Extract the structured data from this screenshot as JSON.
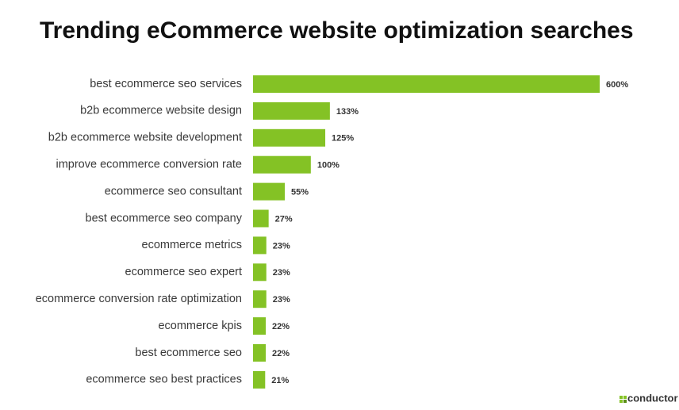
{
  "chart_data": {
    "type": "bar",
    "orientation": "horizontal",
    "title": "Trending eCommerce website optimization searches",
    "categories": [
      "best ecommerce seo services",
      "b2b ecommerce website design",
      "b2b ecommerce website development",
      "improve ecommerce conversion rate",
      "ecommerce seo consultant",
      "best ecommerce seo company",
      "ecommerce metrics",
      "ecommerce seo expert",
      "ecommerce conversion rate optimization",
      "ecommerce kpis",
      "best ecommerce seo",
      "ecommerce seo best practices"
    ],
    "values": [
      600,
      133,
      125,
      100,
      55,
      27,
      23,
      23,
      23,
      22,
      22,
      21
    ],
    "value_labels": [
      "600%",
      "133%",
      "125%",
      "100%",
      "55%",
      "27%",
      "23%",
      "23%",
      "23%",
      "22%",
      "22%",
      "21%"
    ],
    "color": "#84c225"
  },
  "logo": "conductor"
}
